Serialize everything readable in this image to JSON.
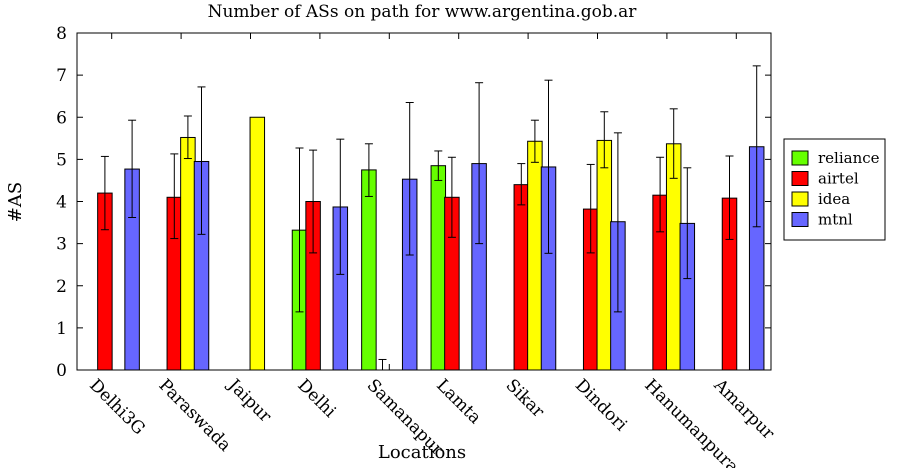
{
  "chart_data": {
    "type": "bar",
    "title": "Number of ASs on path for www.argentina.gob.ar",
    "xlabel": "Locations",
    "ylabel": "#AS",
    "ylim": [
      0,
      8
    ],
    "yticks": [
      0,
      1,
      2,
      3,
      4,
      5,
      6,
      7,
      8
    ],
    "legend_position": "right",
    "categories": [
      "Delhi3G",
      "Paraswada",
      "Jaipur",
      "Delhi",
      "Samanapur",
      "Lamta",
      "Sikar",
      "Dindori",
      "Hanumanpura",
      "Amarpur"
    ],
    "series": [
      {
        "name": "reliance",
        "color": "#66ff00",
        "values": [
          null,
          null,
          null,
          3.32,
          4.75,
          4.85,
          null,
          null,
          null,
          null
        ],
        "err_low": [
          null,
          null,
          null,
          1.38,
          4.12,
          4.5,
          null,
          null,
          null,
          null
        ],
        "err_high": [
          null,
          null,
          null,
          5.27,
          5.37,
          5.2,
          null,
          null,
          null,
          null
        ]
      },
      {
        "name": "airtel",
        "color": "#ff0000",
        "values": [
          4.2,
          4.1,
          null,
          4.0,
          0,
          4.1,
          4.4,
          3.82,
          4.15,
          4.08
        ],
        "err_low": [
          3.33,
          3.12,
          null,
          2.78,
          0,
          3.15,
          3.92,
          2.78,
          3.28,
          3.1
        ],
        "err_high": [
          5.07,
          5.13,
          null,
          5.22,
          0.25,
          5.05,
          4.9,
          4.88,
          5.05,
          5.08
        ]
      },
      {
        "name": "idea",
        "color": "#ffff00",
        "values": [
          null,
          5.52,
          6.0,
          null,
          null,
          null,
          5.43,
          5.45,
          5.37,
          null
        ],
        "err_low": [
          null,
          5.02,
          6.0,
          null,
          null,
          null,
          4.93,
          4.8,
          4.55,
          null
        ],
        "err_high": [
          null,
          6.03,
          6.0,
          null,
          null,
          null,
          5.93,
          6.13,
          6.2,
          null
        ]
      },
      {
        "name": "mtnl",
        "color": "#6666ff",
        "values": [
          4.77,
          4.95,
          null,
          3.87,
          4.53,
          4.9,
          4.82,
          3.52,
          3.48,
          5.3
        ],
        "err_low": [
          3.62,
          3.22,
          null,
          2.27,
          2.73,
          3.0,
          2.77,
          1.38,
          2.17,
          3.4
        ],
        "err_high": [
          5.93,
          6.72,
          null,
          5.48,
          6.35,
          6.82,
          6.88,
          5.63,
          4.8,
          7.22
        ]
      }
    ]
  }
}
